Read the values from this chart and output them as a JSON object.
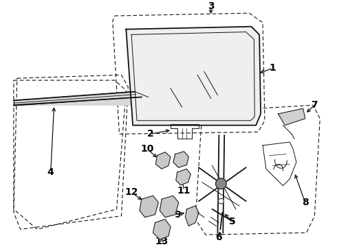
{
  "bg_color": "#ffffff",
  "line_color": "#111111",
  "label_color": "#000000",
  "label_fontsize": 8,
  "label_fontsize_large": 10,
  "lw_main": 1.3,
  "lw_thin": 0.7,
  "lw_dash": 0.8
}
